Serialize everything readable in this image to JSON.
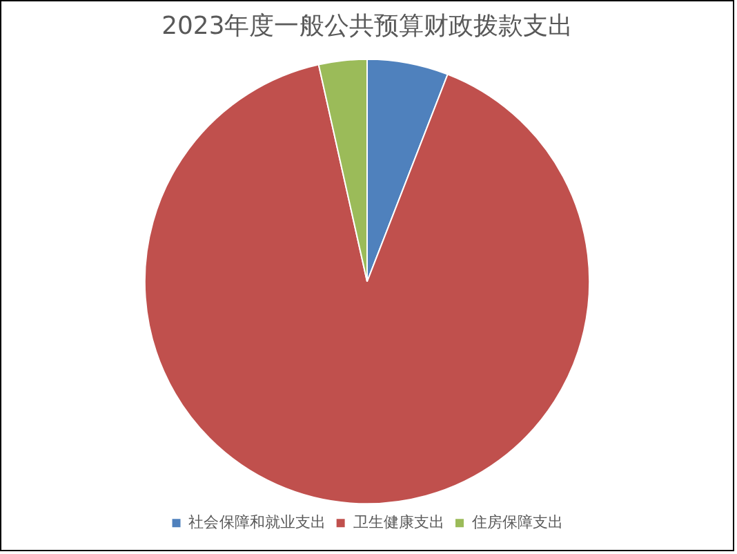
{
  "chart_data": {
    "type": "pie",
    "title": "2023年度一般公共预算财政拨款支出",
    "categories": [
      "社会保障和就业支出",
      "卫生健康支出",
      "住房保障支出"
    ],
    "values": [
      5.9,
      90.6,
      3.5
    ],
    "colors": [
      "#4f81bd",
      "#c0504d",
      "#9bbb59"
    ],
    "legend": "bottom"
  }
}
